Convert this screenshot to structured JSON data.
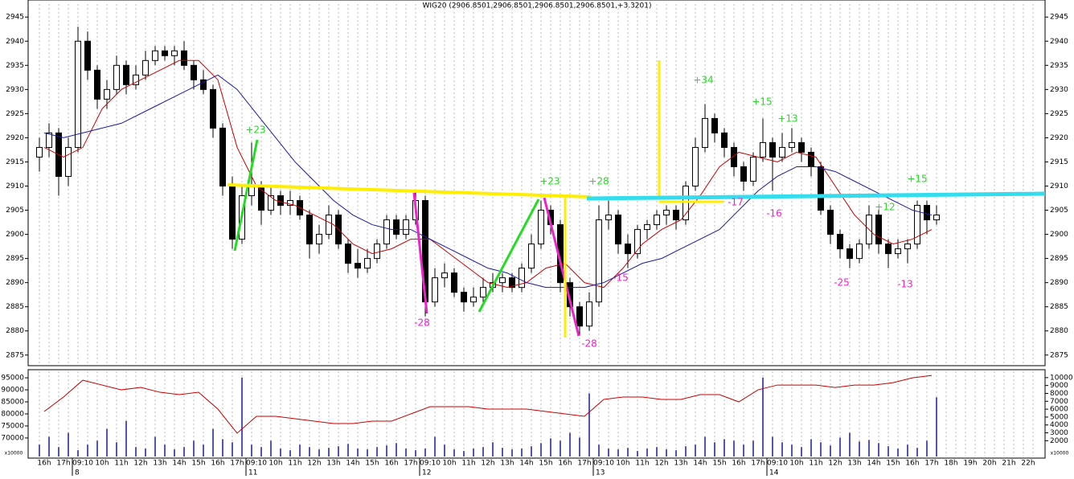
{
  "chart_data": {
    "type": "candlestick",
    "title": "WIG20 (2906.8501,2906.8501,2906.8501,2906.8501,+3.3201)",
    "categories": [
      "16h",
      "17h",
      "09:10",
      "10h",
      "11h",
      "12h",
      "13h",
      "14h",
      "15h",
      "16h",
      "17h",
      "09:10",
      "10h",
      "11h",
      "12h",
      "13h",
      "14h",
      "15h",
      "16h",
      "17h",
      "09:10",
      "10h",
      "11h",
      "12h",
      "13h",
      "14h",
      "15h",
      "16h",
      "17h",
      "09:10",
      "10h",
      "11h",
      "12h",
      "13h",
      "14h",
      "15h",
      "16h",
      "17h",
      "09:10",
      "10h",
      "11h",
      "12h",
      "13h",
      "14h",
      "15h",
      "16h",
      "17h",
      "18h",
      "19h",
      "20h",
      "21h",
      "22h"
    ],
    "date_labels": [
      "8",
      "11",
      "12",
      "13",
      "14"
    ],
    "ohlc": [
      [
        2916,
        2920,
        2913,
        2918
      ],
      [
        2918,
        2923,
        2916,
        2921
      ],
      [
        2921,
        2922,
        2908,
        2912
      ],
      [
        2912,
        2920,
        2910,
        2918
      ],
      [
        2918,
        2943,
        2917,
        2940
      ],
      [
        2940,
        2942,
        2932,
        2934
      ],
      [
        2934,
        2935,
        2926,
        2928
      ],
      [
        2928,
        2932,
        2926,
        2930
      ],
      [
        2930,
        2937,
        2929,
        2935
      ],
      [
        2935,
        2936,
        2929,
        2931
      ],
      [
        2931,
        2935,
        2930,
        2933
      ],
      [
        2933,
        2938,
        2932,
        2936
      ],
      [
        2936,
        2939,
        2935,
        2938
      ],
      [
        2938,
        2939,
        2936,
        2937
      ],
      [
        2937,
        2939,
        2935,
        2938
      ],
      [
        2938,
        2940,
        2934,
        2935
      ],
      [
        2935,
        2936,
        2930,
        2932
      ],
      [
        2932,
        2934,
        2929,
        2930
      ],
      [
        2930,
        2931,
        2920,
        2922
      ],
      [
        2922,
        2923,
        2908,
        2910
      ],
      [
        2910,
        2912,
        2897,
        2899
      ],
      [
        2899,
        2910,
        2898,
        2908
      ],
      [
        2908,
        2919,
        2906,
        2910
      ],
      [
        2910,
        2911,
        2902,
        2905
      ],
      [
        2905,
        2910,
        2904,
        2908
      ],
      [
        2908,
        2909,
        2904,
        2906
      ],
      [
        2906,
        2909,
        2904,
        2907
      ],
      [
        2907,
        2908,
        2903,
        2904
      ],
      [
        2904,
        2905,
        2895,
        2898
      ],
      [
        2898,
        2902,
        2896,
        2900
      ],
      [
        2900,
        2906,
        2899,
        2904
      ],
      [
        2904,
        2905,
        2897,
        2898
      ],
      [
        2898,
        2899,
        2892,
        2894
      ],
      [
        2894,
        2897,
        2891,
        2893
      ],
      [
        2893,
        2897,
        2892,
        2895
      ],
      [
        2895,
        2899,
        2894,
        2898
      ],
      [
        2898,
        2904,
        2897,
        2903
      ],
      [
        2903,
        2904,
        2899,
        2900
      ],
      [
        2900,
        2904,
        2899,
        2903
      ],
      [
        2903,
        2909,
        2902,
        2907
      ],
      [
        2907,
        2908,
        2883,
        2886
      ],
      [
        2886,
        2893,
        2885,
        2891
      ],
      [
        2891,
        2894,
        2889,
        2892
      ],
      [
        2892,
        2893,
        2887,
        2888
      ],
      [
        2888,
        2889,
        2884,
        2886
      ],
      [
        2886,
        2889,
        2885,
        2887
      ],
      [
        2887,
        2891,
        2886,
        2889
      ],
      [
        2889,
        2892,
        2888,
        2890
      ],
      [
        2890,
        2892,
        2888,
        2891
      ],
      [
        2891,
        2892,
        2888,
        2889
      ],
      [
        2889,
        2894,
        2888,
        2893
      ],
      [
        2893,
        2900,
        2892,
        2898
      ],
      [
        2898,
        2907,
        2897,
        2905
      ],
      [
        2905,
        2906,
        2900,
        2902
      ],
      [
        2902,
        2903,
        2888,
        2890
      ],
      [
        2890,
        2891,
        2883,
        2885
      ],
      [
        2885,
        2886,
        2879,
        2881
      ],
      [
        2881,
        2888,
        2880,
        2886
      ],
      [
        2886,
        2906,
        2885,
        2903
      ],
      [
        2903,
        2907,
        2901,
        2904
      ],
      [
        2904,
        2905,
        2896,
        2898
      ],
      [
        2898,
        2900,
        2893,
        2896
      ],
      [
        2896,
        2902,
        2895,
        2901
      ],
      [
        2901,
        2903,
        2899,
        2902
      ],
      [
        2902,
        2905,
        2901,
        2904
      ],
      [
        2904,
        2906,
        2902,
        2905
      ],
      [
        2905,
        2906,
        2901,
        2903
      ],
      [
        2903,
        2911,
        2902,
        2910
      ],
      [
        2910,
        2920,
        2909,
        2918
      ],
      [
        2918,
        2927,
        2917,
        2924
      ],
      [
        2924,
        2925,
        2919,
        2921
      ],
      [
        2921,
        2922,
        2916,
        2918
      ],
      [
        2918,
        2919,
        2912,
        2914
      ],
      [
        2914,
        2915,
        2909,
        2911
      ],
      [
        2911,
        2917,
        2910,
        2916
      ],
      [
        2916,
        2924,
        2915,
        2919
      ],
      [
        2919,
        2920,
        2909,
        2916
      ],
      [
        2916,
        2921,
        2915,
        2918
      ],
      [
        2918,
        2922,
        2917,
        2919
      ],
      [
        2919,
        2920,
        2915,
        2917
      ],
      [
        2917,
        2918,
        2912,
        2914
      ],
      [
        2914,
        2915,
        2904,
        2905
      ],
      [
        2905,
        2906,
        2898,
        2900
      ],
      [
        2900,
        2901,
        2895,
        2897
      ],
      [
        2897,
        2898,
        2893,
        2895
      ],
      [
        2895,
        2899,
        2894,
        2898
      ],
      [
        2898,
        2906,
        2897,
        2904
      ],
      [
        2904,
        2905,
        2896,
        2898
      ],
      [
        2898,
        2899,
        2893,
        2896
      ],
      [
        2896,
        2899,
        2895,
        2897
      ],
      [
        2897,
        2899,
        2894,
        2898
      ],
      [
        2898,
        2907,
        2897,
        2906
      ],
      [
        2906,
        2907,
        2900,
        2903
      ],
      [
        2903,
        2906,
        2902,
        2904
      ]
    ],
    "moving_averages": [
      {
        "color": "#cc0000",
        "values": [
          2918,
          2916,
          2918,
          2926,
          2930,
          2932,
          2934,
          2936,
          2936,
          2932,
          2918,
          2910,
          2907,
          2906,
          2904,
          2902,
          2898,
          2896,
          2897,
          2899,
          2899,
          2896,
          2893,
          2890,
          2889,
          2890,
          2893,
          2894,
          2890,
          2889,
          2893,
          2898,
          2901,
          2903,
          2908,
          2914,
          2917,
          2916,
          2915,
          2917,
          2916,
          2910,
          2904,
          2900,
          2898,
          2899,
          2901
        ]
      },
      {
        "color": "#1a1aaa",
        "values": [
          2921,
          2920,
          2921,
          2922,
          2923,
          2925,
          2927,
          2929,
          2931,
          2933,
          2930,
          2925,
          2920,
          2915,
          2911,
          2907,
          2904,
          2902,
          2901,
          2901,
          2899,
          2897,
          2895,
          2893,
          2892,
          2890,
          2889,
          2889,
          2889,
          2890,
          2892,
          2894,
          2895,
          2897,
          2899,
          2901,
          2905,
          2909,
          2912,
          2914,
          2914,
          2913,
          2911,
          2909,
          2907,
          2905,
          2904
        ]
      }
    ],
    "ylim": [
      2872.8,
      2947.7
    ],
    "yticks": [
      2875,
      2880,
      2885,
      2890,
      2895,
      2900,
      2905,
      2910,
      2915,
      2920,
      2925,
      2930,
      2935,
      2940,
      2945
    ],
    "volume": {
      "color": "#1a1a99",
      "ylim": [
        0,
        10800
      ],
      "yticks": [
        2000,
        3000,
        4000,
        5000,
        6000,
        7000,
        8000,
        9000,
        10000
      ],
      "values": [
        1500,
        2500,
        1200,
        3000,
        800,
        1500,
        2000,
        3500,
        1800,
        4500,
        1200,
        1000,
        2500,
        1500,
        900,
        1200,
        2000,
        1500,
        3500,
        2200,
        1800,
        10000,
        1500,
        1200,
        2000,
        1000,
        800,
        1500,
        1200,
        900,
        1100,
        1300,
        1600,
        1000,
        900,
        1200,
        1400,
        1700,
        1000,
        800,
        1000,
        2500,
        1500,
        900,
        700,
        1000,
        1200,
        1800,
        1100,
        900,
        1000,
        1300,
        1700,
        2300,
        2000,
        3000,
        2400,
        8000,
        1500,
        1000,
        900,
        1100,
        700,
        1000,
        1200,
        900,
        800,
        1300,
        1500,
        2500,
        1800,
        2200,
        2000,
        1500,
        2000,
        10000,
        2500,
        1800,
        1500,
        1200,
        2200,
        1800,
        1400,
        2400,
        3000,
        1900,
        2100,
        1700,
        1300,
        1000,
        1500,
        1100,
        2000,
        7500
      ]
    },
    "open_interest": {
      "color": "#cc0000",
      "ylim": [
        62300,
        97700
      ],
      "yticks": [
        70000,
        75000,
        80000,
        85000,
        90000,
        95000
      ],
      "values": [
        81000,
        87000,
        94000,
        92000,
        90000,
        91000,
        89000,
        88000,
        89000,
        82000,
        72000,
        79000,
        79000,
        78000,
        77000,
        76000,
        76000,
        77000,
        77000,
        80000,
        83000,
        83000,
        83000,
        82000,
        82000,
        82000,
        81000,
        80000,
        79000,
        86000,
        87000,
        87000,
        86000,
        86000,
        88000,
        88000,
        85000,
        90000,
        92000,
        92000,
        92000,
        91000,
        92000,
        92000,
        93000,
        95000,
        96000
      ]
    },
    "unit_label": "x10000",
    "annotations": [
      "+23",
      "-28",
      "+23",
      "+28",
      "-28",
      "-15",
      "+34",
      "+15",
      "+13",
      "-17",
      "-16",
      "-25",
      "+12",
      "-13",
      "+15"
    ]
  }
}
